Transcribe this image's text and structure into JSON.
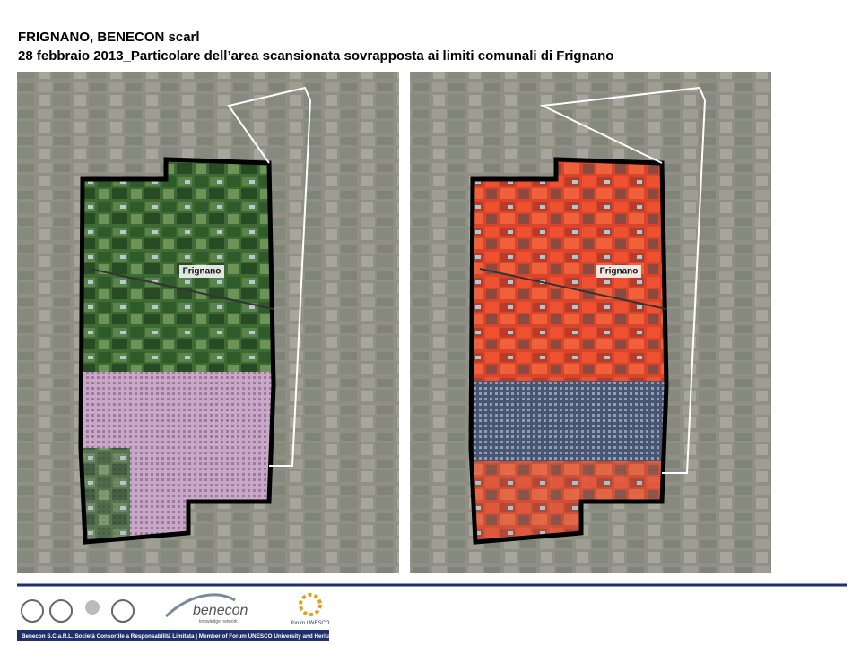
{
  "header": {
    "title": "FRIGNANO, BENECON scarl",
    "subtitle": "28 febbraio 2013_Particolare dell’area scansionata sovrapposta ai limiti comunali di Frignano"
  },
  "maps": [
    {
      "label": "Frignano"
    },
    {
      "label": "Frignano"
    }
  ],
  "footer": {
    "logo_text": "benecon",
    "logo_subtext": "knowledge network",
    "forum_text": "forum UNESCO",
    "bar_text": "Benecon S.C.a.R.L. Società Consortile a Responsabilità Limitata | Member of Forum UNESCO University and Heritage"
  }
}
